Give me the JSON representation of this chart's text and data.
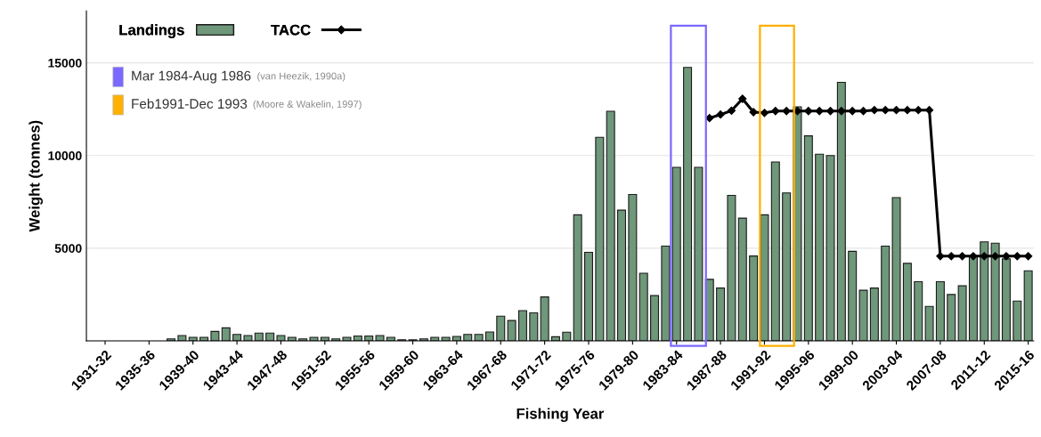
{
  "chart_data": {
    "type": "bar",
    "xlabel": "Fishing Year",
    "ylabel": "Weight (tonnes)",
    "categories": [
      "1931-32",
      null,
      null,
      null,
      "1935-36",
      null,
      null,
      null,
      "1939-40",
      null,
      null,
      null,
      "1943-44",
      null,
      null,
      null,
      "1947-48",
      null,
      null,
      null,
      "1951-52",
      null,
      null,
      null,
      "1955-56",
      null,
      null,
      null,
      "1959-60",
      null,
      null,
      null,
      "1963-64",
      null,
      null,
      null,
      "1967-68",
      null,
      null,
      null,
      "1971-72",
      null,
      null,
      null,
      "1975-76",
      null,
      null,
      null,
      "1979-80",
      null,
      null,
      null,
      "1983-84",
      null,
      null,
      null,
      "1987-88",
      null,
      null,
      null,
      "1991-92",
      null,
      null,
      null,
      "1995-96",
      null,
      null,
      null,
      "1999-00",
      null,
      null,
      null,
      "2003-04",
      null,
      null,
      null,
      "2007-08",
      null,
      null,
      null,
      "2011-12",
      null,
      null,
      null,
      "2015-16"
    ],
    "series": [
      {
        "name": "Landings",
        "color": "#6f977a",
        "values": [
          null,
          null,
          null,
          null,
          null,
          null,
          110,
          290,
          190,
          190,
          510,
          700,
          350,
          290,
          420,
          420,
          290,
          190,
          110,
          190,
          190,
          110,
          190,
          260,
          260,
          290,
          190,
          60,
          60,
          110,
          190,
          190,
          240,
          350,
          350,
          480,
          1330,
          1100,
          1630,
          1510,
          2370,
          220,
          470,
          6800,
          4780,
          10980,
          12390,
          7050,
          7900,
          3650,
          2440,
          5110,
          9360,
          14750,
          9360,
          3320,
          2850,
          7850,
          6620,
          4580,
          6800,
          9650,
          7980,
          12630,
          11060,
          10070,
          10000,
          13950,
          4830,
          2730,
          2850,
          5110,
          7730,
          4180,
          3190,
          1860,
          3190,
          2500,
          2970,
          4570,
          5340,
          5270,
          4420,
          2150,
          3780
        ]
      },
      {
        "name": "TACC",
        "type": "line",
        "color": "#000000",
        "marker": "diamond",
        "line_style": "solid",
        "values": [
          null,
          null,
          null,
          null,
          null,
          null,
          null,
          null,
          null,
          null,
          null,
          null,
          null,
          null,
          null,
          null,
          null,
          null,
          null,
          null,
          null,
          null,
          null,
          null,
          null,
          null,
          null,
          null,
          null,
          null,
          null,
          null,
          null,
          null,
          null,
          null,
          null,
          null,
          null,
          null,
          null,
          null,
          null,
          null,
          null,
          null,
          null,
          null,
          null,
          null,
          null,
          null,
          null,
          null,
          null,
          12020,
          12210,
          12420,
          13060,
          12340,
          12300,
          12400,
          12400,
          12400,
          12400,
          12400,
          12400,
          12400,
          12400,
          12400,
          12450,
          12450,
          12450,
          12450,
          12450,
          12450,
          4570,
          4570,
          4570,
          4570,
          4570,
          4570,
          4570,
          4570,
          4570
        ]
      }
    ],
    "ylim": [
      0,
      17800
    ],
    "yticks": [
      {
        "value": 0,
        "label": null
      },
      5000,
      10000,
      15000
    ],
    "grid": "y",
    "legend": "top left",
    "annotations": [
      "Mar 1984-Aug 1986",
      "(van Heezik, 1990a)",
      "Feb1991-Dec 1993",
      "(Moore & Wakelin, 1997)"
    ]
  }
}
